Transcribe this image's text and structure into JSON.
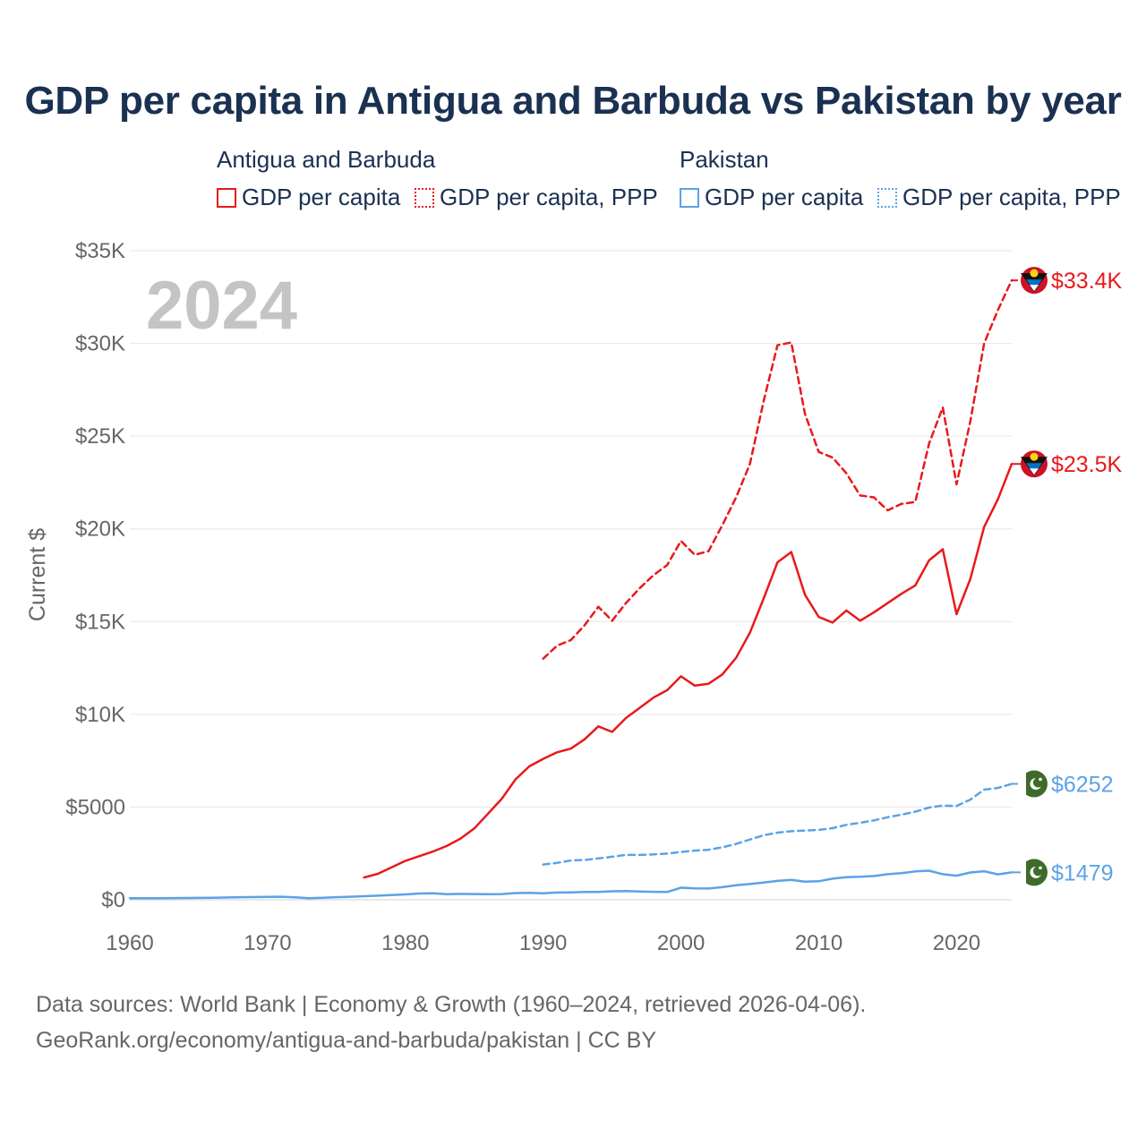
{
  "title": "GDP per capita in Antigua and Barbuda vs Pakistan by year",
  "year_label": "2024",
  "legend": {
    "groups": [
      {
        "country": "Antigua and Barbuda",
        "items": [
          {
            "label": "GDP per capita",
            "style": "solid",
            "color": "#e8191b"
          },
          {
            "label": "GDP per capita, PPP",
            "style": "dotted",
            "color": "#e8191b"
          }
        ]
      },
      {
        "country": "Pakistan",
        "items": [
          {
            "label": "GDP per capita",
            "style": "solid",
            "color": "#5ba3e6"
          },
          {
            "label": "GDP per capita, PPP",
            "style": "dotted",
            "color": "#5ba3e6"
          }
        ]
      }
    ]
  },
  "footer": {
    "source": "Data sources: World Bank | Economy & Growth (1960–2024, retrieved 2026-04-06).",
    "url": "GeoRank.org/economy/antigua-and-barbuda/pakistan | CC BY"
  },
  "chart_data": {
    "type": "line",
    "title": "GDP per capita in Antigua and Barbuda vs Pakistan by year",
    "xlabel": "",
    "ylabel": "Current $",
    "xlim": [
      1960,
      2024
    ],
    "ylim": [
      0,
      35000
    ],
    "x_ticks": [
      1960,
      1970,
      1980,
      1990,
      2000,
      2010,
      2020
    ],
    "x_tick_labels": [
      "1960",
      "1970",
      "1980",
      "1990",
      "2000",
      "2010",
      "2020"
    ],
    "y_ticks": [
      0,
      5000,
      10000,
      15000,
      20000,
      25000,
      30000,
      35000
    ],
    "y_tick_labels": [
      "$0",
      "$5000",
      "$10K",
      "$15K",
      "$20K",
      "$25K",
      "$30K",
      "$35K"
    ],
    "grid": true,
    "series": [
      {
        "name": "Antigua and Barbuda - GDP per capita",
        "color": "#e8191b",
        "dash": "solid",
        "end_label": "$23.5K",
        "flag": "antigua",
        "x": [
          1977,
          1978,
          1979,
          1980,
          1981,
          1982,
          1983,
          1984,
          1985,
          1986,
          1987,
          1988,
          1989,
          1990,
          1991,
          1992,
          1993,
          1994,
          1995,
          1996,
          1997,
          1998,
          1999,
          2000,
          2001,
          2002,
          2003,
          2004,
          2005,
          2006,
          2007,
          2008,
          2009,
          2010,
          2011,
          2012,
          2013,
          2014,
          2015,
          2016,
          2017,
          2018,
          2019,
          2020,
          2021,
          2022,
          2023,
          2024
        ],
        "y": [
          1200,
          1400,
          1750,
          2100,
          2350,
          2600,
          2900,
          3300,
          3850,
          4650,
          5450,
          6500,
          7200,
          7600,
          7950,
          8150,
          8650,
          9350,
          9050,
          9800,
          10350,
          10900,
          11300,
          12050,
          11550,
          11650,
          12150,
          13050,
          14400,
          16250,
          18200,
          18750,
          16450,
          15250,
          14950,
          15600,
          15050,
          15500,
          16000,
          16500,
          16950,
          18300,
          18900,
          15400,
          17300,
          20100,
          21600,
          23500
        ]
      },
      {
        "name": "Antigua and Barbuda - GDP per capita, PPP",
        "color": "#e8191b",
        "dash": "dashed",
        "end_label": "$33.4K",
        "flag": "antigua",
        "x": [
          1990,
          1991,
          1992,
          1993,
          1994,
          1995,
          1996,
          1997,
          1998,
          1999,
          2000,
          2001,
          2002,
          2003,
          2004,
          2005,
          2006,
          2007,
          2008,
          2009,
          2010,
          2011,
          2012,
          2013,
          2014,
          2015,
          2016,
          2017,
          2018,
          2019,
          2020,
          2021,
          2022,
          2023,
          2024
        ],
        "y": [
          13000,
          13700,
          14000,
          14800,
          15800,
          15050,
          16000,
          16800,
          17500,
          18050,
          19350,
          18600,
          18800,
          20200,
          21700,
          23500,
          26900,
          29900,
          30050,
          26200,
          24150,
          23850,
          23000,
          21800,
          21700,
          21000,
          21350,
          21450,
          24600,
          26550,
          22400,
          25800,
          30000,
          31800,
          33400
        ]
      },
      {
        "name": "Pakistan - GDP per capita",
        "color": "#5ba3e6",
        "dash": "solid",
        "end_label": "$1479",
        "flag": "pakistan",
        "x": [
          1960,
          1962,
          1964,
          1966,
          1968,
          1970,
          1971,
          1972,
          1973,
          1974,
          1976,
          1978,
          1980,
          1981,
          1982,
          1983,
          1984,
          1985,
          1986,
          1987,
          1988,
          1989,
          1990,
          1991,
          1992,
          1993,
          1994,
          1995,
          1996,
          1997,
          1998,
          1999,
          2000,
          2001,
          2002,
          2003,
          2004,
          2005,
          2006,
          2007,
          2008,
          2009,
          2010,
          2011,
          2012,
          2013,
          2014,
          2015,
          2016,
          2017,
          2018,
          2019,
          2020,
          2021,
          2022,
          2023,
          2024
        ],
        "y": [
          80,
          85,
          95,
          110,
          140,
          160,
          165,
          130,
          80,
          110,
          165,
          220,
          290,
          340,
          350,
          300,
          320,
          310,
          300,
          310,
          360,
          370,
          350,
          390,
          400,
          420,
          420,
          460,
          470,
          450,
          430,
          420,
          650,
          620,
          610,
          680,
          780,
          850,
          930,
          1020,
          1070,
          980,
          1000,
          1140,
          1220,
          1240,
          1280,
          1380,
          1440,
          1530,
          1570,
          1380,
          1300,
          1470,
          1540,
          1370,
          1479
        ]
      },
      {
        "name": "Pakistan - GDP per capita, PPP",
        "color": "#5ba3e6",
        "dash": "dashed",
        "end_label": "$6252",
        "flag": "pakistan",
        "x": [
          1990,
          1991,
          1992,
          1993,
          1994,
          1995,
          1996,
          1997,
          1998,
          1999,
          2000,
          2001,
          2002,
          2003,
          2004,
          2005,
          2006,
          2007,
          2008,
          2009,
          2010,
          2011,
          2012,
          2013,
          2014,
          2015,
          2016,
          2017,
          2018,
          2019,
          2020,
          2021,
          2022,
          2023,
          2024
        ],
        "y": [
          1900,
          1990,
          2120,
          2150,
          2230,
          2320,
          2420,
          2420,
          2450,
          2490,
          2580,
          2650,
          2700,
          2830,
          3010,
          3250,
          3480,
          3620,
          3700,
          3730,
          3770,
          3860,
          4040,
          4150,
          4280,
          4450,
          4590,
          4750,
          4970,
          5080,
          5060,
          5400,
          5940,
          6030,
          6252
        ]
      }
    ]
  }
}
